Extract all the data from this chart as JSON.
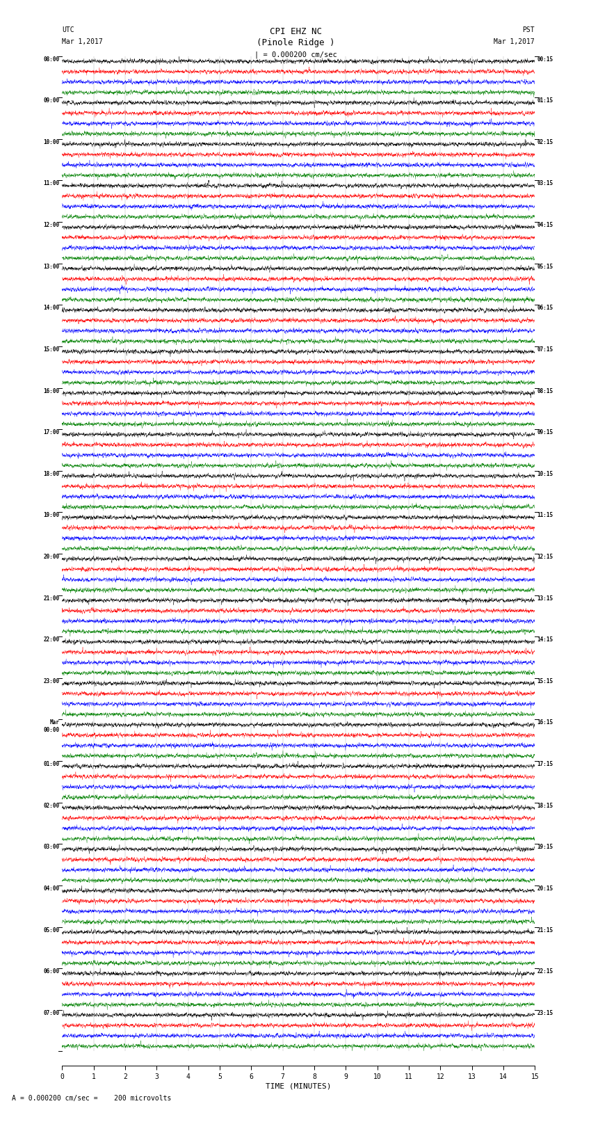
{
  "title_line1": "CPI EHZ NC",
  "title_line2": "(Pinole Ridge )",
  "scale_bar": "| = 0.000200 cm/sec",
  "utc_label": "UTC",
  "utc_date": "Mar 1,2017",
  "pst_label": "PST",
  "pst_date": "Mar 1,2017",
  "xlabel": "TIME (MINUTES)",
  "footer_a": "A",
  "footer_text": "= 0.000200 cm/sec =    200 microvolts",
  "utc_times": [
    "08:00",
    "09:00",
    "10:00",
    "11:00",
    "12:00",
    "13:00",
    "14:00",
    "15:00",
    "16:00",
    "17:00",
    "18:00",
    "19:00",
    "20:00",
    "21:00",
    "22:00",
    "23:00",
    "Mar",
    "01:00",
    "02:00",
    "03:00",
    "04:00",
    "05:00",
    "06:00",
    "07:00"
  ],
  "utc_times2": [
    "",
    "",
    "",
    "",
    "",
    "",
    "",
    "",
    "",
    "",
    "",
    "",
    "",
    "",
    "",
    "",
    "00:00",
    "",
    "",
    "",
    "",
    "",
    "",
    ""
  ],
  "pst_times": [
    "00:15",
    "01:15",
    "02:15",
    "03:15",
    "04:15",
    "05:15",
    "06:15",
    "07:15",
    "08:15",
    "09:15",
    "10:15",
    "11:15",
    "12:15",
    "13:15",
    "14:15",
    "15:15",
    "16:15",
    "17:15",
    "18:15",
    "19:15",
    "20:15",
    "21:15",
    "22:15",
    "23:15"
  ],
  "n_rows": 24,
  "traces_per_row": 4,
  "trace_colors": [
    "black",
    "red",
    "blue",
    "green"
  ],
  "bg_color": "#ffffff",
  "fig_width": 8.5,
  "fig_height": 16.13,
  "xlim": [
    0,
    15
  ],
  "xticks": [
    0,
    1,
    2,
    3,
    4,
    5,
    6,
    7,
    8,
    9,
    10,
    11,
    12,
    13,
    14,
    15
  ],
  "noise_seed": 42
}
